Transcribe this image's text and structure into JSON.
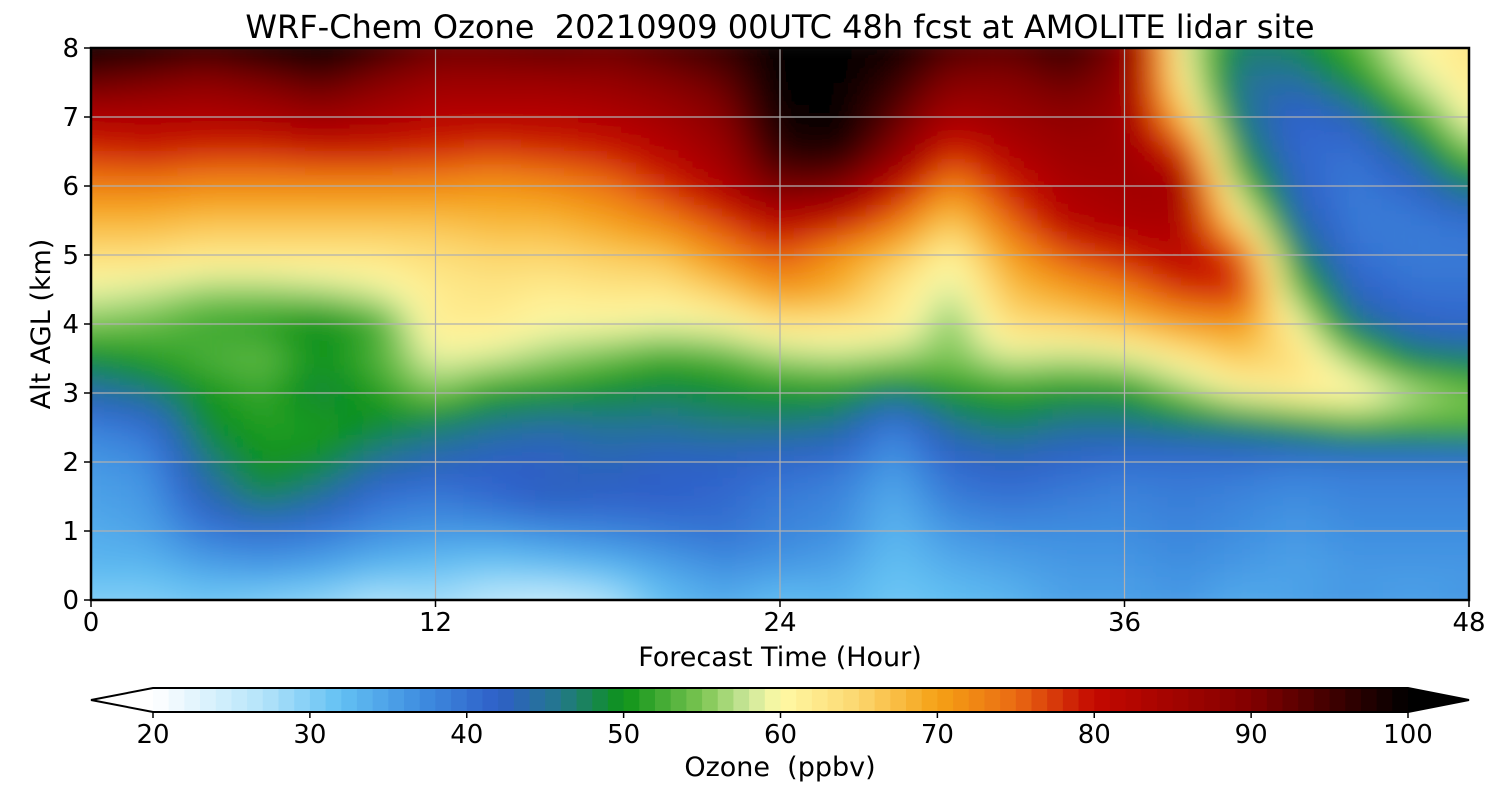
{
  "chart_data": {
    "type": "heatmap",
    "title": "WRF-Chem Ozone  20210909 00UTC 48h fcst at AMOLITE lidar site",
    "xlabel": "Forecast Time (Hour)",
    "ylabel": "Alt AGL (km)",
    "xlim": [
      0,
      48
    ],
    "ylim": [
      0,
      8
    ],
    "x_ticks": [
      "0",
      "12",
      "24",
      "36",
      "48"
    ],
    "y_ticks": [
      "0",
      "1",
      "2",
      "3",
      "4",
      "5",
      "6",
      "7",
      "8"
    ],
    "grid": true,
    "x": [
      0,
      2,
      4,
      6,
      8,
      10,
      12,
      14,
      16,
      18,
      20,
      22,
      24,
      26,
      28,
      30,
      32,
      34,
      36,
      38,
      40,
      42,
      44,
      46,
      48
    ],
    "y": [
      0,
      0.5,
      1,
      1.5,
      2,
      2.5,
      3,
      3.5,
      4,
      4.5,
      5,
      5.5,
      6,
      6.5,
      7,
      7.5,
      8
    ],
    "z": [
      [
        30,
        30,
        31,
        30,
        29,
        27,
        28,
        26,
        25,
        27,
        32,
        34,
        32,
        33,
        31,
        32,
        33,
        35,
        35,
        36,
        34,
        35,
        36,
        35,
        36
      ],
      [
        33,
        33,
        35,
        36,
        35,
        33,
        32,
        31,
        32,
        33,
        35,
        37,
        36,
        35,
        32,
        34,
        35,
        36,
        36,
        37,
        36,
        35,
        36,
        36,
        36
      ],
      [
        34,
        35,
        39,
        40,
        39,
        37,
        36,
        36,
        37,
        38,
        39,
        40,
        38,
        37,
        33,
        36,
        37,
        37,
        37,
        38,
        37,
        36,
        37,
        37,
        37
      ],
      [
        35,
        36,
        43,
        48,
        45,
        40,
        39,
        41,
        43,
        42,
        42,
        41,
        39,
        38,
        34,
        39,
        40,
        39,
        38,
        39,
        38,
        37,
        38,
        38,
        38
      ],
      [
        36,
        37,
        46,
        50,
        49,
        45,
        43,
        42,
        42,
        43,
        42,
        42,
        41,
        40,
        36,
        41,
        42,
        41,
        40,
        40,
        40,
        39,
        39,
        39,
        39
      ],
      [
        38,
        40,
        49,
        51,
        51,
        49,
        47,
        45,
        44,
        45,
        45,
        46,
        46,
        45,
        38,
        45,
        47,
        45,
        45,
        46,
        47,
        49,
        52,
        52,
        53
      ],
      [
        44,
        46,
        50,
        52,
        48,
        51,
        55,
        51,
        50,
        49,
        48,
        49,
        50,
        50,
        47,
        50,
        51,
        50,
        50,
        55,
        60,
        62,
        62,
        58,
        55
      ],
      [
        49,
        51,
        53,
        54,
        50,
        53,
        59,
        58,
        56,
        54,
        52,
        53,
        56,
        57,
        56,
        55,
        58,
        57,
        58,
        62,
        66,
        64,
        56,
        48,
        47
      ],
      [
        55,
        54,
        52,
        51,
        49,
        52,
        62,
        62,
        60,
        60,
        59,
        60,
        63,
        63,
        62,
        55,
        64,
        65,
        67,
        70,
        71,
        61,
        46,
        42,
        41
      ],
      [
        59,
        58,
        56,
        56,
        57,
        59,
        62,
        63,
        62,
        63,
        63,
        66,
        71,
        69,
        63,
        58,
        67,
        70,
        73,
        78,
        79,
        54,
        42,
        40,
        40
      ],
      [
        64,
        64,
        63,
        63,
        63,
        63,
        64,
        65,
        65,
        66,
        67,
        72,
        76,
        71,
        67,
        61,
        70,
        76,
        79,
        82,
        77,
        48,
        40,
        39,
        39
      ],
      [
        68,
        68,
        67,
        67,
        67,
        67,
        67,
        68,
        68,
        70,
        73,
        77,
        82,
        80,
        74,
        66,
        75,
        82,
        84,
        84,
        64,
        44,
        39,
        39,
        40
      ],
      [
        73,
        73,
        72,
        72,
        72,
        72,
        72,
        71,
        72,
        74,
        78,
        83,
        91,
        90,
        81,
        72,
        79,
        84,
        85,
        86,
        55,
        42,
        39,
        41,
        47
      ],
      [
        78,
        79,
        78,
        78,
        79,
        79,
        78,
        77,
        78,
        79,
        82,
        86,
        97,
        98,
        89,
        78,
        83,
        86,
        86,
        79,
        49,
        41,
        40,
        45,
        55
      ],
      [
        83,
        83,
        83,
        84,
        86,
        84,
        82,
        82,
        82,
        83,
        85,
        89,
        99,
        100,
        93,
        84,
        86,
        88,
        86,
        68,
        46,
        41,
        43,
        51,
        60
      ],
      [
        92,
        90,
        88,
        90,
        93,
        89,
        86,
        86,
        86,
        87,
        89,
        92,
        100,
        100,
        96,
        89,
        89,
        92,
        88,
        62,
        45,
        44,
        49,
        57,
        62
      ],
      [
        99,
        98,
        96,
        98,
        100,
        96,
        92,
        92,
        93,
        92,
        94,
        96,
        100,
        100,
        99,
        94,
        93,
        96,
        90,
        60,
        47,
        48,
        53,
        60,
        63
      ]
    ],
    "colorbar": {
      "label": "Ozone  (ppbv)",
      "min": 20,
      "max": 100,
      "ticks": [
        "20",
        "30",
        "40",
        "50",
        "60",
        "70",
        "80",
        "90",
        "100"
      ],
      "extend": "both",
      "colors": [
        [
          20,
          "#ffffff"
        ],
        [
          27,
          "#b4e4fa"
        ],
        [
          32,
          "#62c0f3"
        ],
        [
          37,
          "#3f8ee0"
        ],
        [
          42,
          "#2e5fc8"
        ],
        [
          46,
          "#23788a"
        ],
        [
          50,
          "#0d9318"
        ],
        [
          55,
          "#7cc552"
        ],
        [
          58,
          "#cde89c"
        ],
        [
          60,
          "#fffaa5"
        ],
        [
          65,
          "#fcd66e"
        ],
        [
          70,
          "#f5a115"
        ],
        [
          75,
          "#ea6a13"
        ],
        [
          80,
          "#c40800"
        ],
        [
          90,
          "#820000"
        ],
        [
          100,
          "#000000"
        ]
      ]
    }
  }
}
